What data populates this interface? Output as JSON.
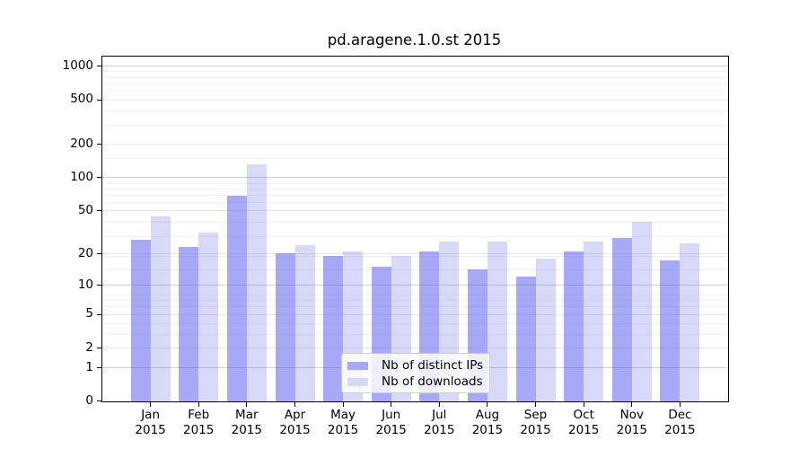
{
  "figure": {
    "background": "#ffffff"
  },
  "chart_data": {
    "type": "bar",
    "title": "pd.aragene.1.0.st 2015",
    "categories": [
      "Jan",
      "Feb",
      "Mar",
      "Apr",
      "May",
      "Jun",
      "Jul",
      "Aug",
      "Sep",
      "Oct",
      "Nov",
      "Dec"
    ],
    "category_year": "2015",
    "series": [
      {
        "name": "Nb of distinct IPs",
        "color": "#a8a8f8",
        "values": [
          27,
          23,
          68,
          20,
          19,
          15,
          21,
          14,
          12,
          21,
          28,
          17
        ]
      },
      {
        "name": "Nb of downloads",
        "color": "#d8d8f8",
        "values": [
          44,
          31,
          130,
          24,
          21,
          19,
          26,
          26,
          18,
          26,
          39,
          25
        ]
      }
    ],
    "y_axis": {
      "scale": "log1p",
      "ticks": [
        1000,
        500,
        200,
        100,
        50,
        20,
        10,
        5,
        2,
        1,
        0
      ],
      "ylim": [
        0,
        1200
      ],
      "grid": true,
      "grid_over_bars": true
    },
    "x_axis": {
      "tick_count": 12
    },
    "legend": {
      "position": "lower center"
    },
    "colors": {
      "spine": "#000000",
      "grid_major": "rgba(105,105,105,0.32)",
      "grid_mid": "rgba(105,105,105,0.16)",
      "grid_minor": "rgba(105,105,105,0.09)"
    }
  }
}
